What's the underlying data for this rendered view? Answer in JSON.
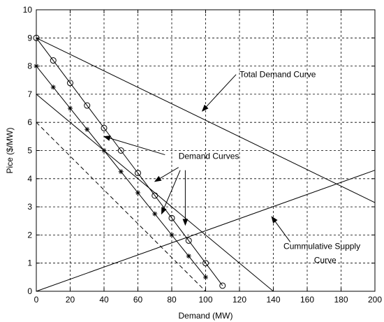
{
  "chart_data": {
    "type": "line",
    "title": "",
    "xlabel": "Demand (MW)",
    "ylabel": "Pice ($/MW)",
    "xlim": [
      0,
      200
    ],
    "ylim": [
      0,
      10
    ],
    "xticks": [
      "0",
      "20",
      "40",
      "60",
      "80",
      "100",
      "120",
      "140",
      "160",
      "180",
      "200"
    ],
    "yticks": [
      "0",
      "1",
      "2",
      "3",
      "4",
      "5",
      "6",
      "7",
      "8",
      "9",
      "10"
    ],
    "grid": true,
    "series": [
      {
        "style": "line-circle",
        "color": "#000000",
        "x": [
          0,
          10,
          20,
          30,
          40,
          50,
          60,
          70,
          80,
          90,
          100,
          110
        ],
        "y": [
          9,
          8.2,
          7.4,
          6.6,
          5.8,
          5.0,
          4.2,
          3.4,
          2.6,
          1.8,
          1.0,
          0.2
        ]
      },
      {
        "style": "line-star",
        "color": "#000000",
        "x": [
          0,
          10,
          20,
          30,
          40,
          50,
          60,
          70,
          80,
          90,
          100
        ],
        "y": [
          8,
          7.25,
          6.5,
          5.75,
          5.0,
          4.25,
          3.5,
          2.75,
          2.0,
          1.25,
          0.5
        ]
      },
      {
        "style": "solid",
        "color": "#000000",
        "x": [
          0,
          140
        ],
        "y": [
          7,
          0
        ]
      },
      {
        "style": "dashed",
        "color": "#000000",
        "x": [
          0,
          100
        ],
        "y": [
          6,
          0
        ]
      },
      {
        "style": "solid",
        "color": "#000000",
        "x": [
          0,
          200
        ],
        "y": [
          9,
          3.15
        ]
      },
      {
        "style": "solid",
        "color": "#000000",
        "x": [
          0,
          200
        ],
        "y": [
          0,
          4.3
        ]
      }
    ],
    "annotations": [
      {
        "text": "Total Demand Curve",
        "text_at": [
          120,
          7.6
        ],
        "anchor": "start",
        "arrows": [
          {
            "from": [
              118,
              7.7
            ],
            "to": [
              98,
              6.4
            ]
          }
        ]
      },
      {
        "text": "Demand Curves",
        "text_at": [
          84,
          4.7
        ],
        "anchor": "start",
        "arrows": [
          {
            "from": [
              76,
              4.85
            ],
            "to": [
              40,
              5.5
            ]
          },
          {
            "from": [
              84,
              4.4
            ],
            "to": [
              70,
              3.9
            ]
          },
          {
            "from": [
              85,
              4.3
            ],
            "to": [
              74,
              2.75
            ]
          },
          {
            "from": [
              88,
              4.3
            ],
            "to": [
              88,
              2.35
            ]
          }
        ]
      },
      {
        "text": "Cummulative Supply",
        "text_at": [
          146,
          1.5
        ],
        "anchor": "start",
        "arrows": [
          {
            "from": [
              150,
              1.75
            ],
            "to": [
              139,
              2.65
            ]
          }
        ]
      },
      {
        "text": "Curve",
        "text_at": [
          164,
          1.0
        ],
        "anchor": "start",
        "arrows": []
      }
    ]
  }
}
